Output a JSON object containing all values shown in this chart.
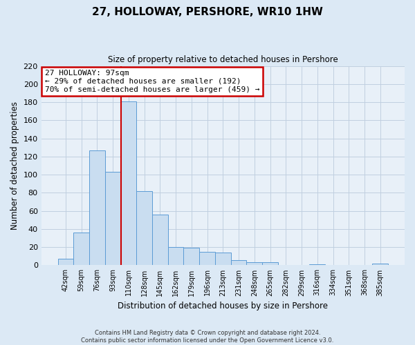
{
  "title": "27, HOLLOWAY, PERSHORE, WR10 1HW",
  "subtitle": "Size of property relative to detached houses in Pershore",
  "xlabel": "Distribution of detached houses by size in Pershore",
  "ylabel": "Number of detached properties",
  "bar_labels": [
    "42sqm",
    "59sqm",
    "76sqm",
    "93sqm",
    "110sqm",
    "128sqm",
    "145sqm",
    "162sqm",
    "179sqm",
    "196sqm",
    "213sqm",
    "231sqm",
    "248sqm",
    "265sqm",
    "282sqm",
    "299sqm",
    "316sqm",
    "334sqm",
    "351sqm",
    "368sqm",
    "385sqm"
  ],
  "bar_heights": [
    7,
    36,
    127,
    103,
    181,
    82,
    56,
    20,
    19,
    15,
    14,
    6,
    3,
    3,
    0,
    0,
    1,
    0,
    0,
    0,
    2
  ],
  "bar_color": "#c9ddf0",
  "bar_edge_color": "#5b9bd5",
  "vline_x": 3.5,
  "vline_color": "#cc0000",
  "ylim": [
    0,
    220
  ],
  "yticks": [
    0,
    20,
    40,
    60,
    80,
    100,
    120,
    140,
    160,
    180,
    200,
    220
  ],
  "annotation_line1": "27 HOLLOWAY: 97sqm",
  "annotation_line2": "← 29% of detached houses are smaller (192)",
  "annotation_line3": "70% of semi-detached houses are larger (459) →",
  "annotation_box_color": "#cc0000",
  "annotation_box_fill": "#ffffff",
  "footer_text": "Contains HM Land Registry data © Crown copyright and database right 2024.\nContains public sector information licensed under the Open Government Licence v3.0.",
  "background_color": "#dce9f5",
  "plot_bg_color": "#e8f0f8",
  "grid_color": "#c0cfe0"
}
